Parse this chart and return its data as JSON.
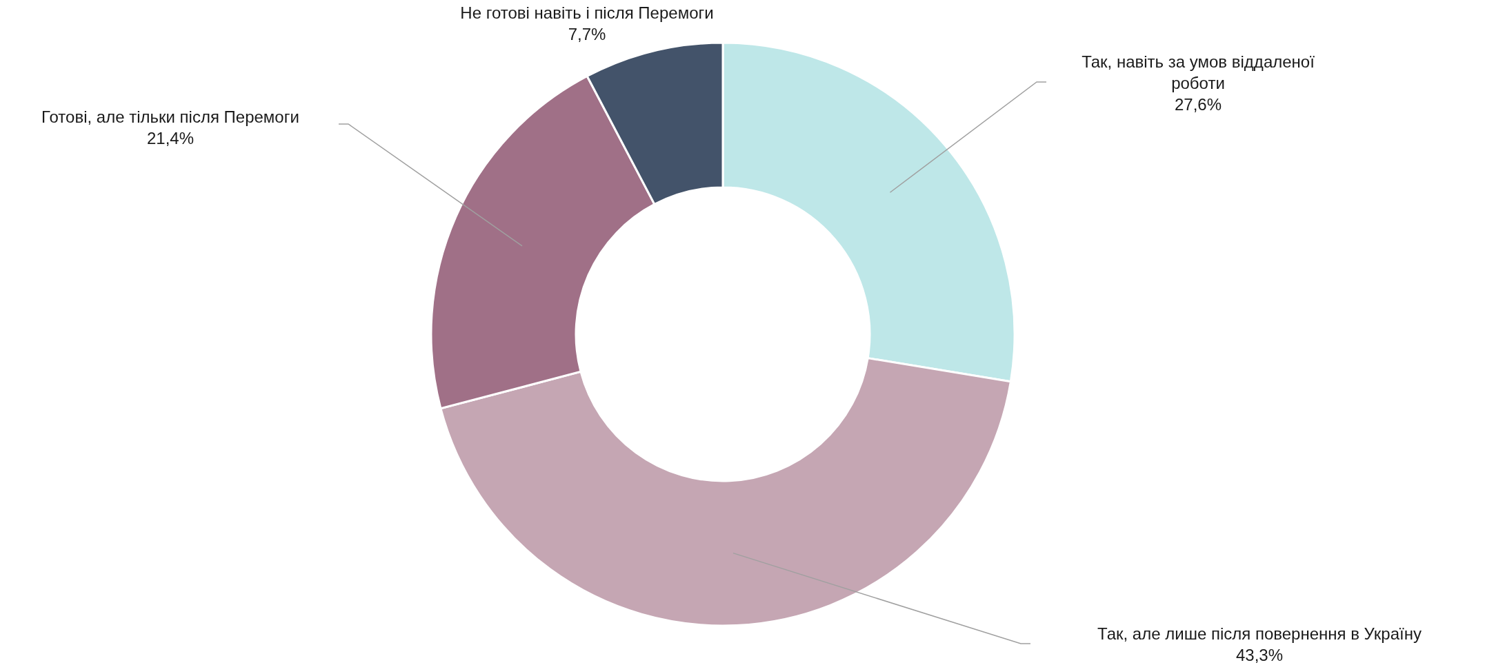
{
  "chart_data": {
    "type": "donut",
    "categories": [
      "Так, навіть за умов віддаленої роботи",
      "Так, але лише після повернення в Україну",
      "Готові, але тільки після Перемоги",
      "Не готові навіть і після Перемоги"
    ],
    "values": [
      27.6,
      43.3,
      21.4,
      7.7
    ],
    "value_labels": [
      "27,6%",
      "43,3%",
      "21,4%",
      "7,7%"
    ],
    "colors": [
      "#bee7e8",
      "#c5a6b3",
      "#a07087",
      "#43536a"
    ]
  }
}
